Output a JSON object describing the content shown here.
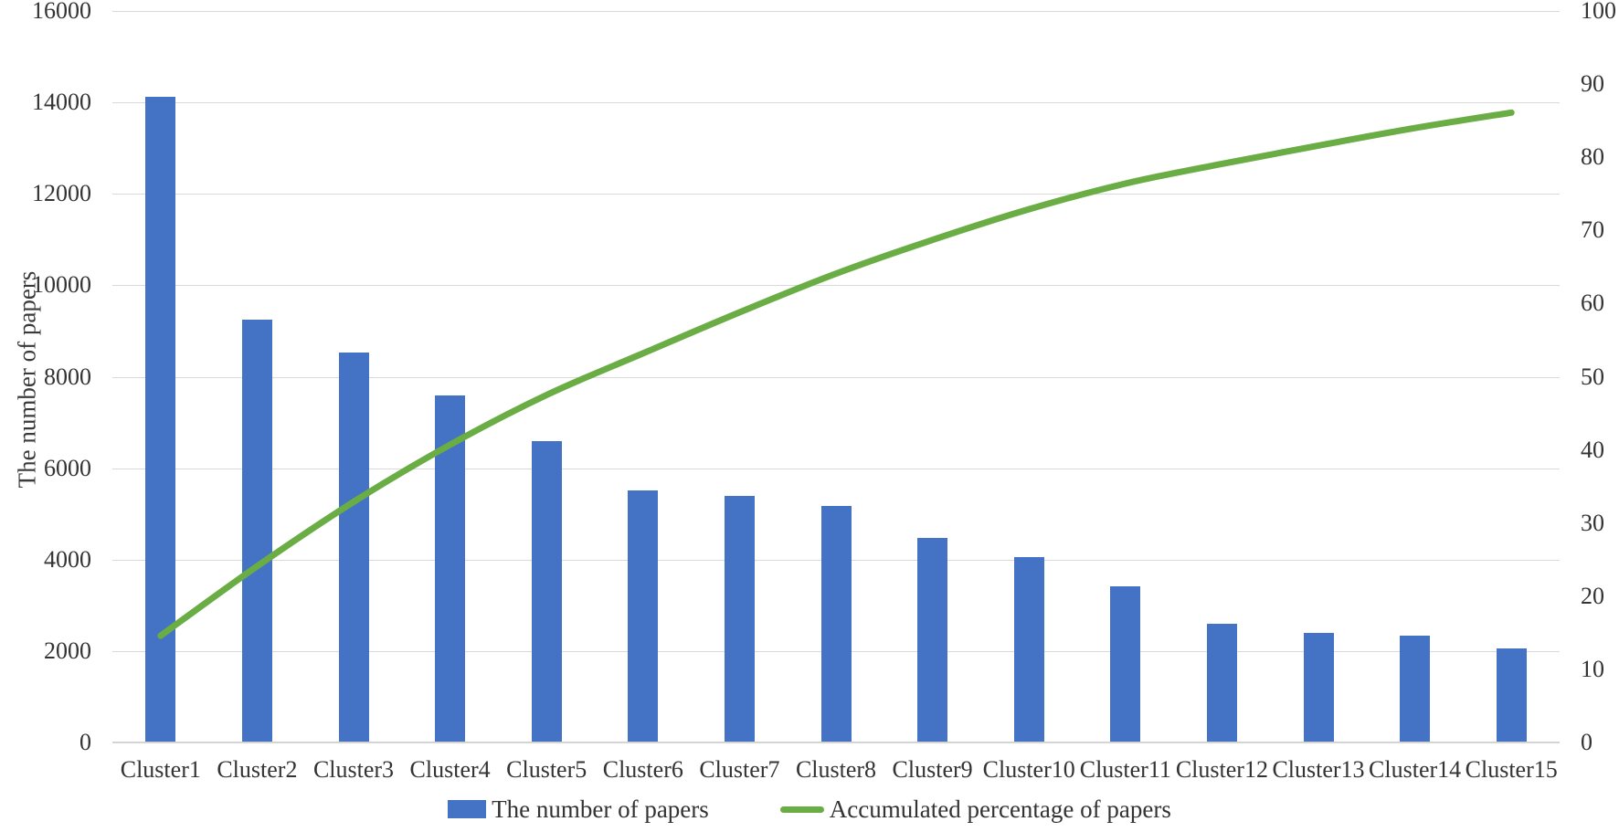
{
  "chart_data": {
    "type": "bar",
    "subtype": "pareto-combo",
    "categories": [
      "Cluster1",
      "Cluster2",
      "Cluster3",
      "Cluster4",
      "Cluster5",
      "Cluster6",
      "Cluster7",
      "Cluster8",
      "Cluster9",
      "Cluster10",
      "Cluster11",
      "Cluster12",
      "Cluster13",
      "Cluster14",
      "Cluster15"
    ],
    "series": [
      {
        "name": "The number of papers",
        "type": "bar",
        "axis": "left",
        "color": "#4472c4",
        "values": [
          14120,
          9250,
          8530,
          7600,
          6590,
          5510,
          5400,
          5170,
          4480,
          4060,
          3420,
          2600,
          2400,
          2330,
          2050
        ]
      },
      {
        "name": "Accumulated percentage of papers",
        "type": "line",
        "axis": "right",
        "color": "#6aad45",
        "smooth": true,
        "values": [
          14.6,
          24.1,
          32.9,
          40.7,
          47.5,
          53.2,
          58.8,
          64.1,
          68.7,
          72.9,
          76.4,
          79.1,
          81.6,
          84.0,
          86.1
        ]
      }
    ],
    "left_axis": {
      "title": "The number of papers",
      "min": 0,
      "max": 16000,
      "step": 2000,
      "ticks_top_to_bottom": [
        "16000",
        "14000",
        "12000",
        "10000",
        "8000",
        "6000",
        "4000",
        "2000",
        "0"
      ]
    },
    "right_axis": {
      "title": "",
      "min": 0,
      "max": 100,
      "step": 10,
      "ticks_top_to_bottom": [
        "100",
        "90",
        "80",
        "70",
        "60",
        "50",
        "40",
        "30",
        "20",
        "10",
        "0"
      ]
    },
    "grid": true,
    "gridline_color": "#d9d9d9",
    "legend_position": "bottom",
    "title": "",
    "xlabel": ""
  }
}
